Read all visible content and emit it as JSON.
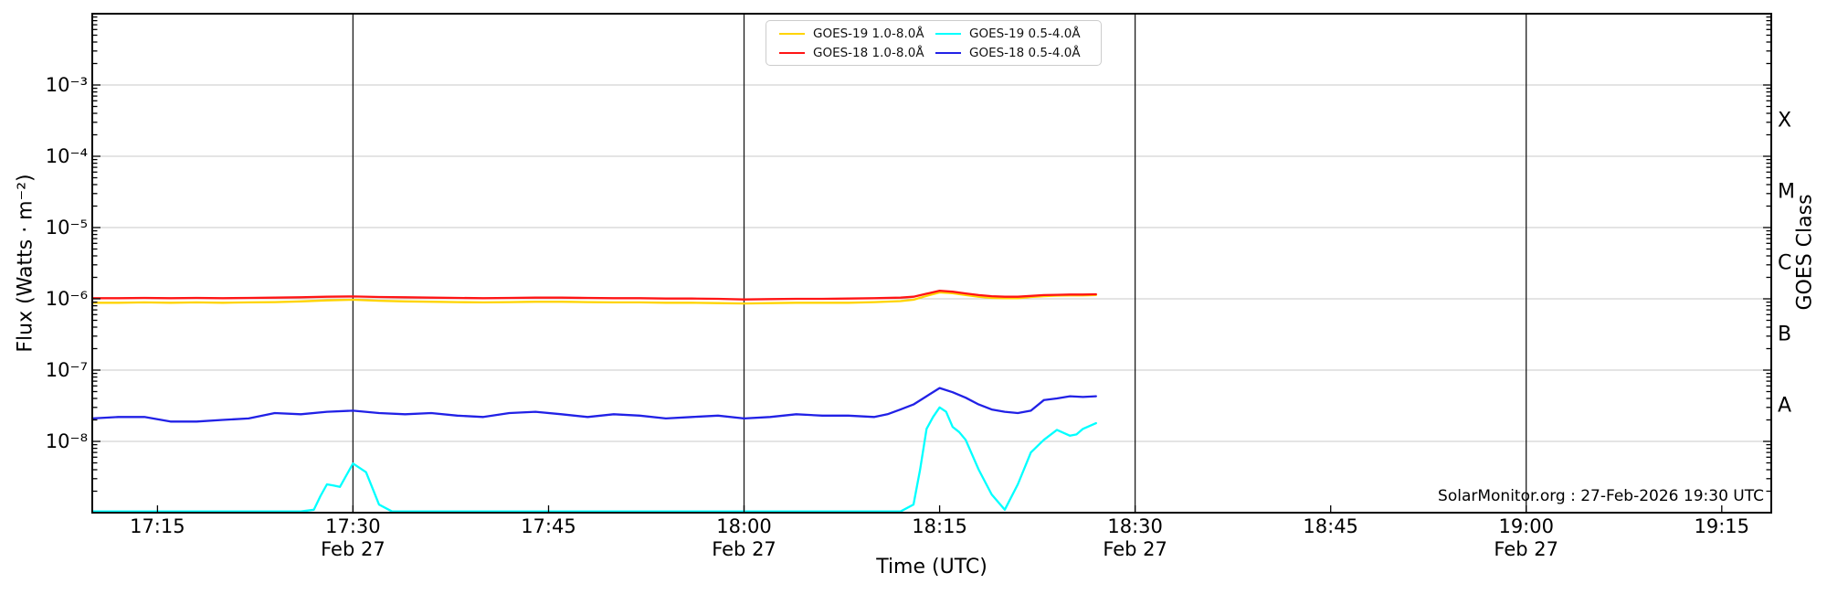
{
  "watermark": "SolarMonitor.org : 27-Feb-2026 19:30 UTC",
  "chart_data": {
    "type": "line",
    "title": "",
    "x_axis": {
      "label": "Time (UTC)",
      "start_time": "17:10",
      "end_time": "19:19",
      "units": "minutes after 17:00 UTC",
      "range_min": [
        10,
        138.8
      ],
      "event_lines_min": [
        30,
        60,
        90,
        120
      ],
      "ticks": [
        {
          "min": 15,
          "label": "17:15",
          "sub": ""
        },
        {
          "min": 30,
          "label": "17:30",
          "sub": "Feb 27"
        },
        {
          "min": 45,
          "label": "17:45",
          "sub": ""
        },
        {
          "min": 60,
          "label": "18:00",
          "sub": "Feb 27"
        },
        {
          "min": 75,
          "label": "18:15",
          "sub": ""
        },
        {
          "min": 90,
          "label": "18:30",
          "sub": "Feb 27"
        },
        {
          "min": 105,
          "label": "18:45",
          "sub": ""
        },
        {
          "min": 120,
          "label": "19:00",
          "sub": "Feb 27"
        },
        {
          "min": 135,
          "label": "19:15",
          "sub": ""
        }
      ]
    },
    "y_axis": {
      "label": "Flux (Watts · m⁻²)",
      "scale": "log",
      "range": [
        1e-09,
        0.01
      ],
      "grid": true,
      "tick_exponents": [
        -3,
        -4,
        -5,
        -6,
        -7,
        -8
      ],
      "tick_labels": [
        "10⁻³",
        "10⁻⁴",
        "10⁻⁵",
        "10⁻⁶",
        "10⁻⁷",
        "10⁻⁸"
      ]
    },
    "right_axis": {
      "label": "GOES Class",
      "classes": [
        {
          "label": "X",
          "log_center": -3.5
        },
        {
          "label": "M",
          "log_center": -4.5
        },
        {
          "label": "C",
          "log_center": -5.5
        },
        {
          "label": "B",
          "log_center": -6.5
        },
        {
          "label": "A",
          "log_center": -7.5
        }
      ]
    },
    "legend_position": "top-center",
    "series": [
      {
        "id": "goes19-long",
        "name": "GOES-19 1.0-8.0Å",
        "color": "#ffd400",
        "points": [
          [
            10,
            8.8e-07
          ],
          [
            12,
            8.8e-07
          ],
          [
            14,
            8.9e-07
          ],
          [
            16,
            8.8e-07
          ],
          [
            18,
            8.9e-07
          ],
          [
            20,
            8.8e-07
          ],
          [
            22,
            8.9e-07
          ],
          [
            24,
            9e-07
          ],
          [
            26,
            9.2e-07
          ],
          [
            28,
            9.5e-07
          ],
          [
            30,
            9.7e-07
          ],
          [
            32,
            9.4e-07
          ],
          [
            34,
            9.2e-07
          ],
          [
            36,
            9.1e-07
          ],
          [
            38,
            9e-07
          ],
          [
            40,
            8.9e-07
          ],
          [
            42,
            9e-07
          ],
          [
            44,
            9.1e-07
          ],
          [
            46,
            9.1e-07
          ],
          [
            48,
            9e-07
          ],
          [
            50,
            8.9e-07
          ],
          [
            52,
            8.9e-07
          ],
          [
            54,
            8.8e-07
          ],
          [
            56,
            8.8e-07
          ],
          [
            58,
            8.7e-07
          ],
          [
            60,
            8.6e-07
          ],
          [
            62,
            8.7e-07
          ],
          [
            64,
            8.8e-07
          ],
          [
            66,
            8.8e-07
          ],
          [
            68,
            8.8e-07
          ],
          [
            70,
            9e-07
          ],
          [
            72,
            9.3e-07
          ],
          [
            73,
            9.7e-07
          ],
          [
            74,
            1.1e-06
          ],
          [
            75,
            1.23e-06
          ],
          [
            76,
            1.2e-06
          ],
          [
            77,
            1.13e-06
          ],
          [
            78,
            1.07e-06
          ],
          [
            79,
            1.03e-06
          ],
          [
            80,
            1.02e-06
          ],
          [
            81,
            1.02e-06
          ],
          [
            82,
            1.06e-06
          ],
          [
            83,
            1.09e-06
          ],
          [
            84,
            1.11e-06
          ],
          [
            85,
            1.12e-06
          ],
          [
            86,
            1.12e-06
          ],
          [
            87,
            1.13e-06
          ]
        ]
      },
      {
        "id": "goes18-long",
        "name": "GOES-18 1.0-8.0Å",
        "color": "#ff1515",
        "points": [
          [
            10,
            1.02e-06
          ],
          [
            12,
            1.02e-06
          ],
          [
            14,
            1.03e-06
          ],
          [
            16,
            1.02e-06
          ],
          [
            18,
            1.03e-06
          ],
          [
            20,
            1.02e-06
          ],
          [
            22,
            1.03e-06
          ],
          [
            24,
            1.04e-06
          ],
          [
            26,
            1.05e-06
          ],
          [
            28,
            1.07e-06
          ],
          [
            30,
            1.08e-06
          ],
          [
            32,
            1.06e-06
          ],
          [
            34,
            1.05e-06
          ],
          [
            36,
            1.04e-06
          ],
          [
            38,
            1.03e-06
          ],
          [
            40,
            1.02e-06
          ],
          [
            42,
            1.03e-06
          ],
          [
            44,
            1.04e-06
          ],
          [
            46,
            1.04e-06
          ],
          [
            48,
            1.03e-06
          ],
          [
            50,
            1.02e-06
          ],
          [
            52,
            1.02e-06
          ],
          [
            54,
            1.01e-06
          ],
          [
            56,
            1.01e-06
          ],
          [
            58,
            1e-06
          ],
          [
            60,
            9.8e-07
          ],
          [
            62,
            9.9e-07
          ],
          [
            64,
            1e-06
          ],
          [
            66,
            1e-06
          ],
          [
            68,
            1.01e-06
          ],
          [
            70,
            1.02e-06
          ],
          [
            72,
            1.04e-06
          ],
          [
            73,
            1.07e-06
          ],
          [
            74,
            1.18e-06
          ],
          [
            75,
            1.3e-06
          ],
          [
            76,
            1.26e-06
          ],
          [
            77,
            1.19e-06
          ],
          [
            78,
            1.13e-06
          ],
          [
            79,
            1.09e-06
          ],
          [
            80,
            1.07e-06
          ],
          [
            81,
            1.07e-06
          ],
          [
            82,
            1.1e-06
          ],
          [
            83,
            1.13e-06
          ],
          [
            84,
            1.14e-06
          ],
          [
            85,
            1.15e-06
          ],
          [
            86,
            1.15e-06
          ],
          [
            87,
            1.16e-06
          ]
        ]
      },
      {
        "id": "goes19-short",
        "name": "GOES-19 0.5-4.0Å",
        "color": "#00ffff",
        "points": [
          [
            10,
            1e-09
          ],
          [
            20,
            1e-09
          ],
          [
            26,
            1e-09
          ],
          [
            27,
            1.1e-09
          ],
          [
            27.5,
            1.7e-09
          ],
          [
            28,
            2.5e-09
          ],
          [
            28.5,
            2.4e-09
          ],
          [
            29,
            2.3e-09
          ],
          [
            30,
            4.9e-09
          ],
          [
            31,
            3.7e-09
          ],
          [
            31.5,
            2.2e-09
          ],
          [
            32,
            1.3e-09
          ],
          [
            33,
            1e-09
          ],
          [
            40,
            1e-09
          ],
          [
            50,
            1e-09
          ],
          [
            60,
            1e-09
          ],
          [
            70,
            1e-09
          ],
          [
            72,
            1e-09
          ],
          [
            73,
            1.3e-09
          ],
          [
            73.5,
            4e-09
          ],
          [
            74,
            1.5e-08
          ],
          [
            74.5,
            2.2e-08
          ],
          [
            75,
            3e-08
          ],
          [
            75.5,
            2.6e-08
          ],
          [
            76,
            1.6e-08
          ],
          [
            76.5,
            1.35e-08
          ],
          [
            77,
            1.05e-08
          ],
          [
            78,
            4e-09
          ],
          [
            79,
            1.8e-09
          ],
          [
            80,
            1.1e-09
          ],
          [
            81,
            2.5e-09
          ],
          [
            82,
            7e-09
          ],
          [
            83,
            1.05e-08
          ],
          [
            84,
            1.45e-08
          ],
          [
            85,
            1.2e-08
          ],
          [
            85.5,
            1.25e-08
          ],
          [
            86,
            1.5e-08
          ],
          [
            87,
            1.8e-08
          ]
        ]
      },
      {
        "id": "goes18-short",
        "name": "GOES-18 0.5-4.0Å",
        "color": "#2121e6",
        "points": [
          [
            10,
            2.1e-08
          ],
          [
            12,
            2.2e-08
          ],
          [
            14,
            2.2e-08
          ],
          [
            16,
            1.9e-08
          ],
          [
            18,
            1.9e-08
          ],
          [
            20,
            2e-08
          ],
          [
            22,
            2.1e-08
          ],
          [
            24,
            2.5e-08
          ],
          [
            26,
            2.4e-08
          ],
          [
            28,
            2.6e-08
          ],
          [
            30,
            2.7e-08
          ],
          [
            32,
            2.5e-08
          ],
          [
            34,
            2.4e-08
          ],
          [
            36,
            2.5e-08
          ],
          [
            38,
            2.3e-08
          ],
          [
            40,
            2.2e-08
          ],
          [
            42,
            2.5e-08
          ],
          [
            44,
            2.6e-08
          ],
          [
            46,
            2.4e-08
          ],
          [
            48,
            2.2e-08
          ],
          [
            50,
            2.4e-08
          ],
          [
            52,
            2.3e-08
          ],
          [
            54,
            2.1e-08
          ],
          [
            56,
            2.2e-08
          ],
          [
            58,
            2.3e-08
          ],
          [
            60,
            2.1e-08
          ],
          [
            62,
            2.2e-08
          ],
          [
            64,
            2.4e-08
          ],
          [
            66,
            2.3e-08
          ],
          [
            68,
            2.3e-08
          ],
          [
            70,
            2.2e-08
          ],
          [
            71,
            2.4e-08
          ],
          [
            72,
            2.8e-08
          ],
          [
            73,
            3.3e-08
          ],
          [
            74,
            4.3e-08
          ],
          [
            75,
            5.6e-08
          ],
          [
            76,
            4.9e-08
          ],
          [
            77,
            4.1e-08
          ],
          [
            78,
            3.3e-08
          ],
          [
            79,
            2.8e-08
          ],
          [
            80,
            2.6e-08
          ],
          [
            81,
            2.5e-08
          ],
          [
            82,
            2.7e-08
          ],
          [
            83,
            3.8e-08
          ],
          [
            84,
            4e-08
          ],
          [
            85,
            4.3e-08
          ],
          [
            86,
            4.2e-08
          ],
          [
            87,
            4.3e-08
          ]
        ]
      }
    ],
    "colors": {
      "grid": "#c9c9c9",
      "event_line": "#1a1a1a",
      "border": "#000000",
      "background": "#ffffff"
    }
  }
}
